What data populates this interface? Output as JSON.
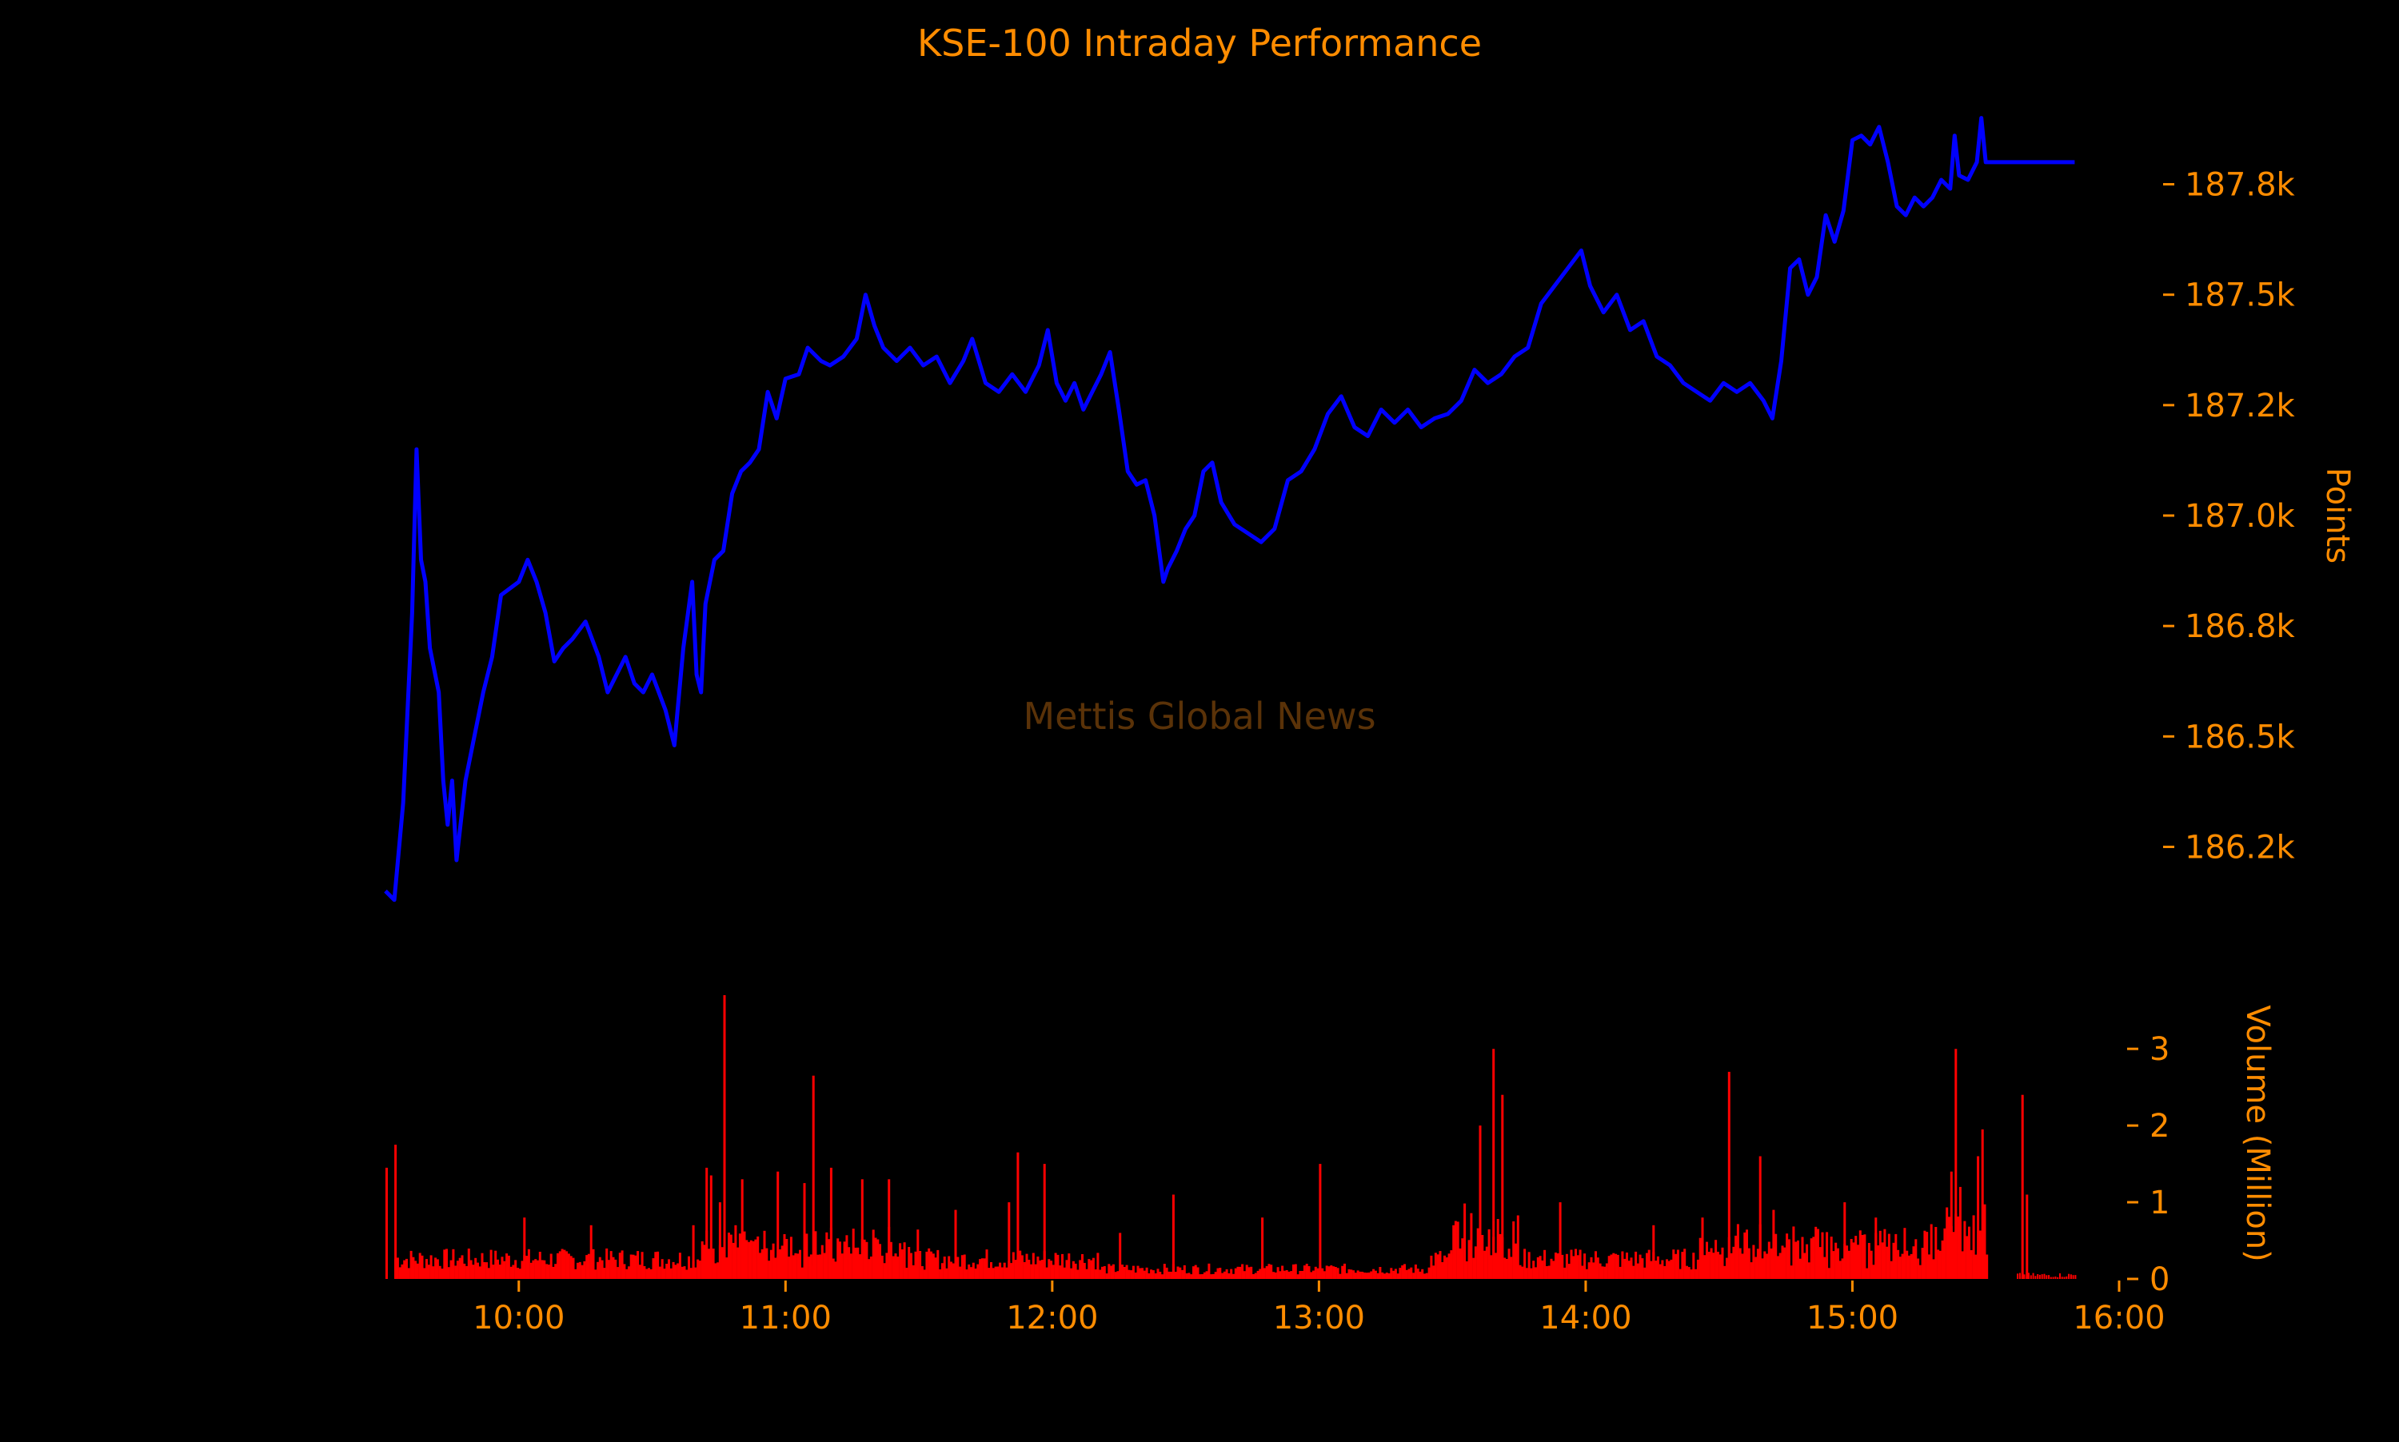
{
  "chart_data": {
    "type": "line",
    "title": "KSE-100 Intraday Performance",
    "watermark": "Mettis Global News",
    "colors": {
      "background": "#000000",
      "text": "#ff8c00",
      "price_line": "#0000ff",
      "volume_bars": "#ff0000",
      "watermark": "#5a3208"
    },
    "price": {
      "ylabel": "Points",
      "ylim": [
        186050,
        187950
      ],
      "ticks": [
        {
          "value": 186250,
          "label": "186.2k"
        },
        {
          "value": 186500,
          "label": "186.5k"
        },
        {
          "value": 186750,
          "label": "186.8k"
        },
        {
          "value": 187000,
          "label": "187.0k"
        },
        {
          "value": 187250,
          "label": "187.2k"
        },
        {
          "value": 187500,
          "label": "187.5k"
        },
        {
          "value": 187750,
          "label": "187.8k"
        }
      ],
      "series": [
        {
          "points": [
            [
              "09:30",
              186150
            ],
            [
              "09:32",
              186130
            ],
            [
              "09:34",
              186350
            ],
            [
              "09:36",
              186780
            ],
            [
              "09:37",
              187150
            ],
            [
              "09:38",
              186900
            ],
            [
              "09:39",
              186850
            ],
            [
              "09:40",
              186700
            ],
            [
              "09:42",
              186600
            ],
            [
              "09:43",
              186400
            ],
            [
              "09:44",
              186300
            ],
            [
              "09:45",
              186400
            ],
            [
              "09:46",
              186220
            ],
            [
              "09:48",
              186400
            ],
            [
              "09:50",
              186500
            ],
            [
              "09:52",
              186600
            ],
            [
              "09:54",
              186680
            ],
            [
              "09:56",
              186820
            ],
            [
              "10:00",
              186850
            ],
            [
              "10:02",
              186900
            ],
            [
              "10:04",
              186850
            ],
            [
              "10:06",
              186780
            ],
            [
              "10:08",
              186670
            ],
            [
              "10:10",
              186700
            ],
            [
              "10:12",
              186720
            ],
            [
              "10:15",
              186760
            ],
            [
              "10:18",
              186680
            ],
            [
              "10:20",
              186600
            ],
            [
              "10:22",
              186640
            ],
            [
              "10:24",
              186680
            ],
            [
              "10:26",
              186620
            ],
            [
              "10:28",
              186600
            ],
            [
              "10:30",
              186640
            ],
            [
              "10:33",
              186560
            ],
            [
              "10:35",
              186480
            ],
            [
              "10:37",
              186700
            ],
            [
              "10:39",
              186850
            ],
            [
              "10:40",
              186640
            ],
            [
              "10:41",
              186600
            ],
            [
              "10:42",
              186800
            ],
            [
              "10:44",
              186900
            ],
            [
              "10:46",
              186920
            ],
            [
              "10:48",
              187050
            ],
            [
              "10:50",
              187100
            ],
            [
              "10:52",
              187120
            ],
            [
              "10:54",
              187150
            ],
            [
              "10:56",
              187280
            ],
            [
              "10:58",
              187220
            ],
            [
              "11:00",
              187310
            ],
            [
              "11:03",
              187320
            ],
            [
              "11:05",
              187380
            ],
            [
              "11:08",
              187350
            ],
            [
              "11:10",
              187340
            ],
            [
              "11:13",
              187360
            ],
            [
              "11:16",
              187400
            ],
            [
              "11:18",
              187500
            ],
            [
              "11:20",
              187430
            ],
            [
              "11:22",
              187380
            ],
            [
              "11:25",
              187350
            ],
            [
              "11:28",
              187380
            ],
            [
              "11:31",
              187340
            ],
            [
              "11:34",
              187360
            ],
            [
              "11:37",
              187300
            ],
            [
              "11:40",
              187350
            ],
            [
              "11:42",
              187400
            ],
            [
              "11:45",
              187300
            ],
            [
              "11:48",
              187280
            ],
            [
              "11:51",
              187320
            ],
            [
              "11:54",
              187280
            ],
            [
              "11:57",
              187340
            ],
            [
              "11:59",
              187420
            ],
            [
              "12:01",
              187300
            ],
            [
              "12:03",
              187260
            ],
            [
              "12:05",
              187300
            ],
            [
              "12:07",
              187240
            ],
            [
              "12:09",
              187280
            ],
            [
              "12:11",
              187320
            ],
            [
              "12:13",
              187370
            ],
            [
              "12:15",
              187240
            ],
            [
              "12:17",
              187100
            ],
            [
              "12:19",
              187070
            ],
            [
              "12:21",
              187080
            ],
            [
              "12:23",
              187000
            ],
            [
              "12:25",
              186850
            ],
            [
              "12:26",
              186880
            ],
            [
              "12:28",
              186920
            ],
            [
              "12:30",
              186970
            ],
            [
              "12:32",
              187000
            ],
            [
              "12:34",
              187100
            ],
            [
              "12:36",
              187120
            ],
            [
              "12:38",
              187030
            ],
            [
              "12:41",
              186980
            ],
            [
              "12:44",
              186960
            ],
            [
              "12:47",
              186940
            ],
            [
              "12:50",
              186970
            ],
            [
              "12:53",
              187080
            ],
            [
              "12:56",
              187100
            ],
            [
              "12:59",
              187150
            ],
            [
              "13:02",
              187230
            ],
            [
              "13:05",
              187270
            ],
            [
              "13:08",
              187200
            ],
            [
              "13:11",
              187180
            ],
            [
              "13:14",
              187240
            ],
            [
              "13:17",
              187210
            ],
            [
              "13:20",
              187240
            ],
            [
              "13:23",
              187200
            ],
            [
              "13:26",
              187220
            ],
            [
              "13:29",
              187230
            ],
            [
              "13:32",
              187260
            ],
            [
              "13:35",
              187330
            ],
            [
              "13:38",
              187300
            ],
            [
              "13:41",
              187320
            ],
            [
              "13:44",
              187360
            ],
            [
              "13:47",
              187380
            ],
            [
              "13:50",
              187480
            ],
            [
              "13:53",
              187520
            ],
            [
              "13:56",
              187560
            ],
            [
              "13:59",
              187600
            ],
            [
              "14:01",
              187520
            ],
            [
              "14:04",
              187460
            ],
            [
              "14:07",
              187500
            ],
            [
              "14:10",
              187420
            ],
            [
              "14:13",
              187440
            ],
            [
              "14:16",
              187360
            ],
            [
              "14:19",
              187340
            ],
            [
              "14:22",
              187300
            ],
            [
              "14:25",
              187280
            ],
            [
              "14:28",
              187260
            ],
            [
              "14:31",
              187300
            ],
            [
              "14:34",
              187280
            ],
            [
              "14:37",
              187300
            ],
            [
              "14:40",
              187260
            ],
            [
              "14:42",
              187220
            ],
            [
              "14:44",
              187350
            ],
            [
              "14:46",
              187560
            ],
            [
              "14:48",
              187580
            ],
            [
              "14:50",
              187500
            ],
            [
              "14:52",
              187540
            ],
            [
              "14:54",
              187680
            ],
            [
              "14:56",
              187620
            ],
            [
              "14:58",
              187690
            ],
            [
              "15:00",
              187850
            ],
            [
              "15:02",
              187860
            ],
            [
              "15:04",
              187840
            ],
            [
              "15:06",
              187880
            ],
            [
              "15:08",
              187800
            ],
            [
              "15:10",
              187700
            ],
            [
              "15:12",
              187680
            ],
            [
              "15:14",
              187720
            ],
            [
              "15:16",
              187700
            ],
            [
              "15:18",
              187720
            ],
            [
              "15:20",
              187760
            ],
            [
              "15:22",
              187740
            ],
            [
              "15:23",
              187860
            ],
            [
              "15:24",
              187770
            ],
            [
              "15:26",
              187760
            ],
            [
              "15:28",
              187800
            ],
            [
              "15:29",
              187900
            ],
            [
              "15:30",
              187800
            ],
            [
              "15:50",
              187800
            ]
          ]
        }
      ]
    },
    "volume": {
      "ylabel": "Volume (Million)",
      "ylim": [
        0,
        3.7
      ],
      "ticks": [
        {
          "value": 0,
          "label": "0"
        },
        {
          "value": 1,
          "label": "1"
        },
        {
          "value": 2,
          "label": "2"
        },
        {
          "value": 3,
          "label": "3"
        }
      ],
      "spikes": [
        [
          "09:30",
          1.45
        ],
        [
          "09:32",
          1.75
        ],
        [
          "10:01",
          0.8
        ],
        [
          "10:16",
          0.7
        ],
        [
          "10:39",
          0.7
        ],
        [
          "10:42",
          1.45
        ],
        [
          "10:43",
          1.35
        ],
        [
          "10:45",
          1.0
        ],
        [
          "10:46",
          3.7
        ],
        [
          "10:50",
          1.3
        ],
        [
          "10:58",
          1.4
        ],
        [
          "11:04",
          1.25
        ],
        [
          "11:06",
          2.65
        ],
        [
          "11:10",
          1.45
        ],
        [
          "11:17",
          1.3
        ],
        [
          "11:23",
          1.3
        ],
        [
          "11:38",
          0.9
        ],
        [
          "11:50",
          1.0
        ],
        [
          "11:52",
          1.65
        ],
        [
          "11:58",
          1.5
        ],
        [
          "12:15",
          0.6
        ],
        [
          "12:27",
          1.1
        ],
        [
          "12:47",
          0.8
        ],
        [
          "13:00",
          1.5
        ],
        [
          "13:30",
          0.7
        ],
        [
          "13:36",
          2.0
        ],
        [
          "13:39",
          3.0
        ],
        [
          "13:41",
          2.4
        ],
        [
          "13:54",
          1.0
        ],
        [
          "14:15",
          0.7
        ],
        [
          "14:26",
          0.8
        ],
        [
          "14:32",
          2.7
        ],
        [
          "14:39",
          1.6
        ],
        [
          "14:42",
          0.9
        ],
        [
          "14:58",
          1.0
        ],
        [
          "15:05",
          0.8
        ],
        [
          "15:22",
          1.4
        ],
        [
          "15:23",
          3.0
        ],
        [
          "15:24",
          1.2
        ],
        [
          "15:28",
          1.6
        ],
        [
          "15:29",
          1.95
        ],
        [
          "15:38",
          2.4
        ],
        [
          "15:39",
          1.1
        ]
      ]
    },
    "xaxis": {
      "range": [
        "09:30",
        "16:00"
      ],
      "ticks": [
        "10:00",
        "11:00",
        "12:00",
        "13:00",
        "14:00",
        "15:00",
        "16:00"
      ]
    }
  }
}
